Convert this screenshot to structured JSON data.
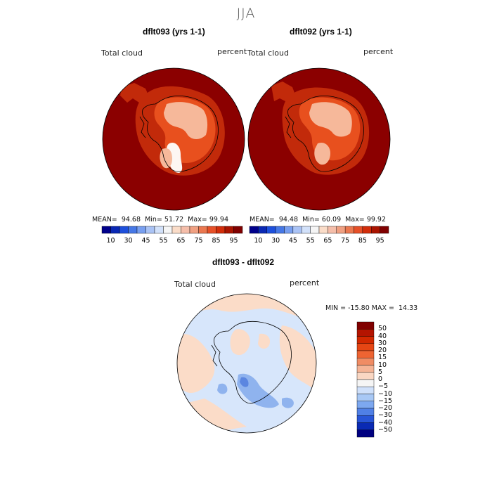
{
  "figure_title": "JJA",
  "panels": [
    {
      "title": "dflt093 (yrs 1-1)",
      "variable": "Total cloud",
      "units": "percent",
      "mean_label": "MEAN=",
      "mean": "94.68",
      "min_label": "Min=",
      "min": "51.72",
      "max_label": "Max=",
      "max": "99.94"
    },
    {
      "title": "dflt092 (yrs 1-1)",
      "variable": "Total cloud",
      "units": "percent",
      "mean_label": "MEAN=",
      "mean": "94.48",
      "min_label": "Min=",
      "min": "60.09",
      "max_label": "Max=",
      "max": "99.92"
    }
  ],
  "colorbar_top": {
    "tick_labels": [
      "10",
      "30",
      "45",
      "55",
      "65",
      "75",
      "85",
      "95"
    ],
    "colors": [
      "#00008b",
      "#0a28b4",
      "#1e50dc",
      "#4678e6",
      "#789ff0",
      "#aac3f5",
      "#d2e1fa",
      "#f5f5f5",
      "#fadcc8",
      "#f5beaa",
      "#f0a082",
      "#eb7850",
      "#e65028",
      "#d22d0a",
      "#aa1400",
      "#800000"
    ]
  },
  "difference": {
    "title": "dflt093 - dflt092",
    "variable": "Total cloud",
    "units": "percent",
    "min_label": "MIN =",
    "min": "-15.80",
    "max_label": "MAX =",
    "max": "14.33"
  },
  "colorbar_diff": {
    "tick_labels": [
      "50",
      "40",
      "30",
      "20",
      "15",
      "10",
      "5",
      "0",
      "−5",
      "−10",
      "−15",
      "−20",
      "−30",
      "−40",
      "−50"
    ],
    "colors": [
      "#800000",
      "#b41400",
      "#d22800",
      "#e64614",
      "#ee6432",
      "#f08c64",
      "#f5b496",
      "#fad7c3",
      "#f5f5f5",
      "#cfe0fa",
      "#a8c8f5",
      "#7da8f0",
      "#5080e6",
      "#2855d7",
      "#0a2ab4",
      "#000080"
    ]
  },
  "map_colors": {
    "deep_red": "#8b0000",
    "red": "#c22a0a",
    "orange": "#e8501e",
    "light": "#f6b89a",
    "white": "#fdf6f2",
    "diff_base": "#d7e6fb",
    "diff_pos": "#fbdcc8",
    "diff_neg": "#8fb3ee",
    "diff_neg2": "#5b86e0"
  }
}
